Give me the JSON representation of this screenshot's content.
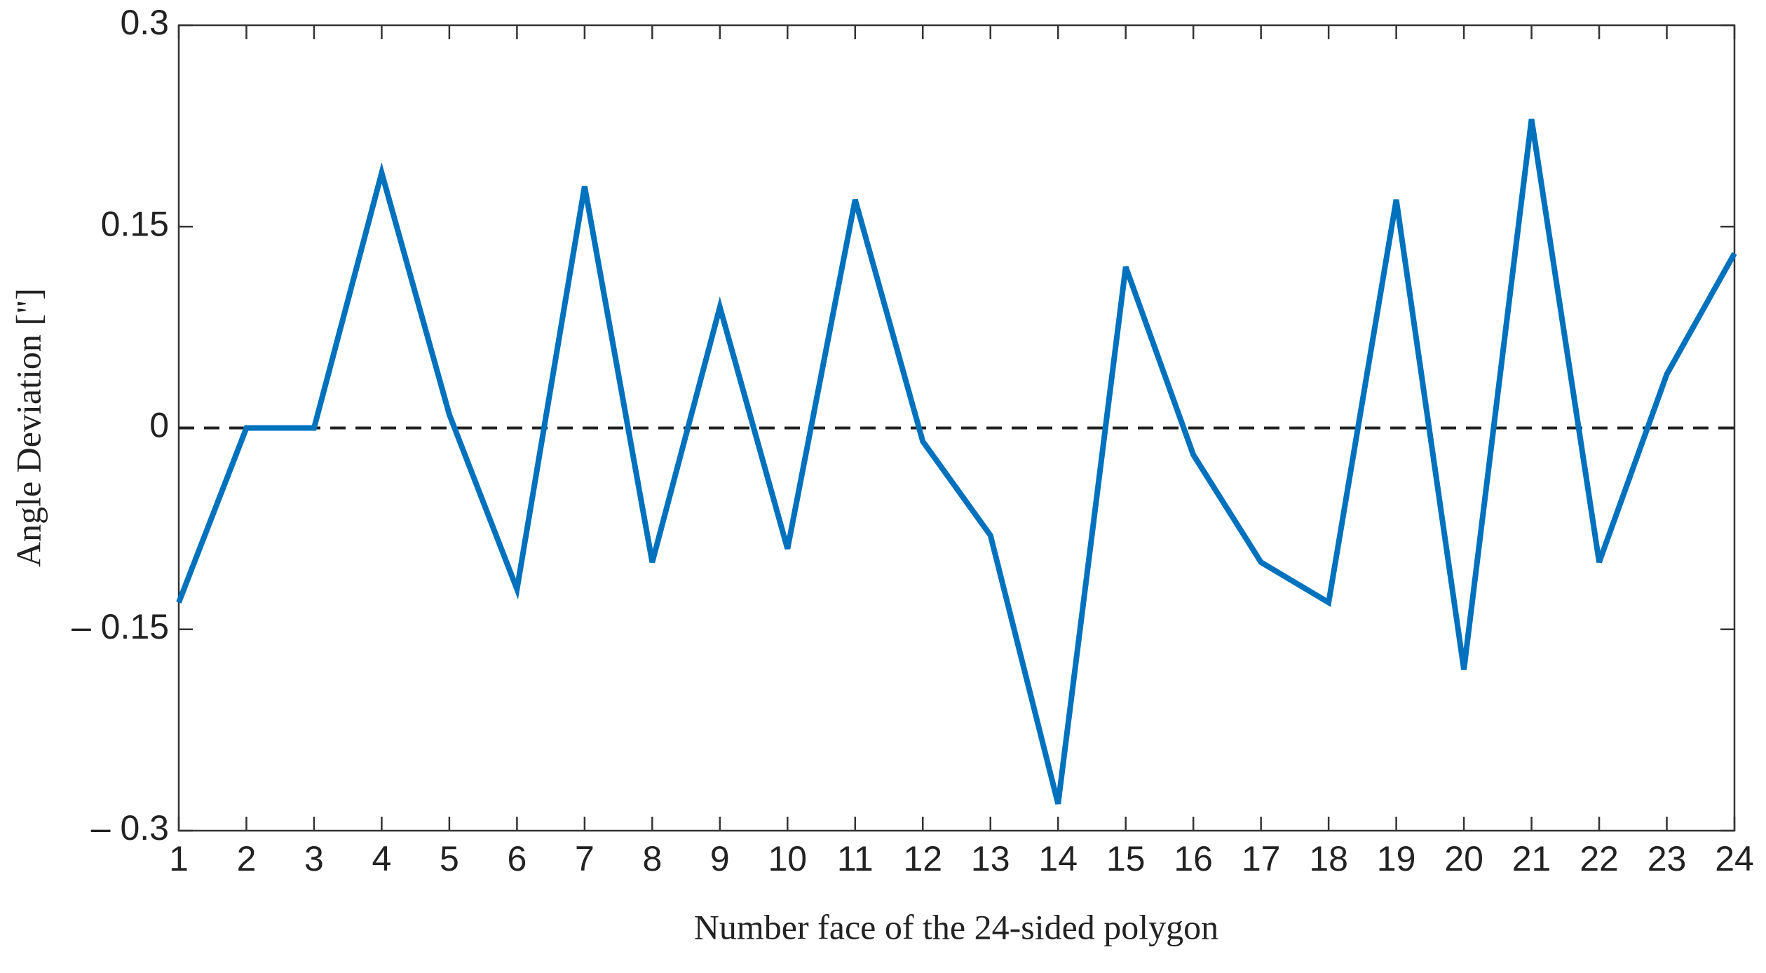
{
  "chart_data": {
    "type": "line",
    "xlabel": "Number face of the 24-sided polygon",
    "ylabel": "Angle Deviation [\"]",
    "x": [
      1,
      2,
      3,
      4,
      5,
      6,
      7,
      8,
      9,
      10,
      11,
      12,
      13,
      14,
      15,
      16,
      17,
      18,
      19,
      20,
      21,
      22,
      23,
      24
    ],
    "series": [
      {
        "color": "#0072bd",
        "values": [
          -0.13,
          0,
          0,
          0.19,
          0.01,
          -0.12,
          0.18,
          -0.1,
          0.09,
          -0.09,
          0.17,
          -0.01,
          -0.08,
          -0.28,
          0.12,
          -0.02,
          -0.1,
          -0.13,
          0.17,
          -0.18,
          0.23,
          -0.1,
          0.04,
          0.13
        ]
      }
    ],
    "xlim": [
      1,
      24
    ],
    "xticks": [
      1,
      2,
      3,
      4,
      5,
      6,
      7,
      8,
      9,
      10,
      11,
      12,
      13,
      14,
      15,
      16,
      17,
      18,
      19,
      20,
      21,
      22,
      23,
      24
    ],
    "ylim": [
      -0.3,
      0.3
    ],
    "yticks": [
      {
        "value": -0.3,
        "label": "– 0.3"
      },
      {
        "value": -0.15,
        "label": "– 0.15"
      },
      0,
      0.15,
      0.3
    ],
    "reference_line": {
      "y": 0,
      "style": "dashed",
      "color": "#222222"
    },
    "grid": false
  }
}
